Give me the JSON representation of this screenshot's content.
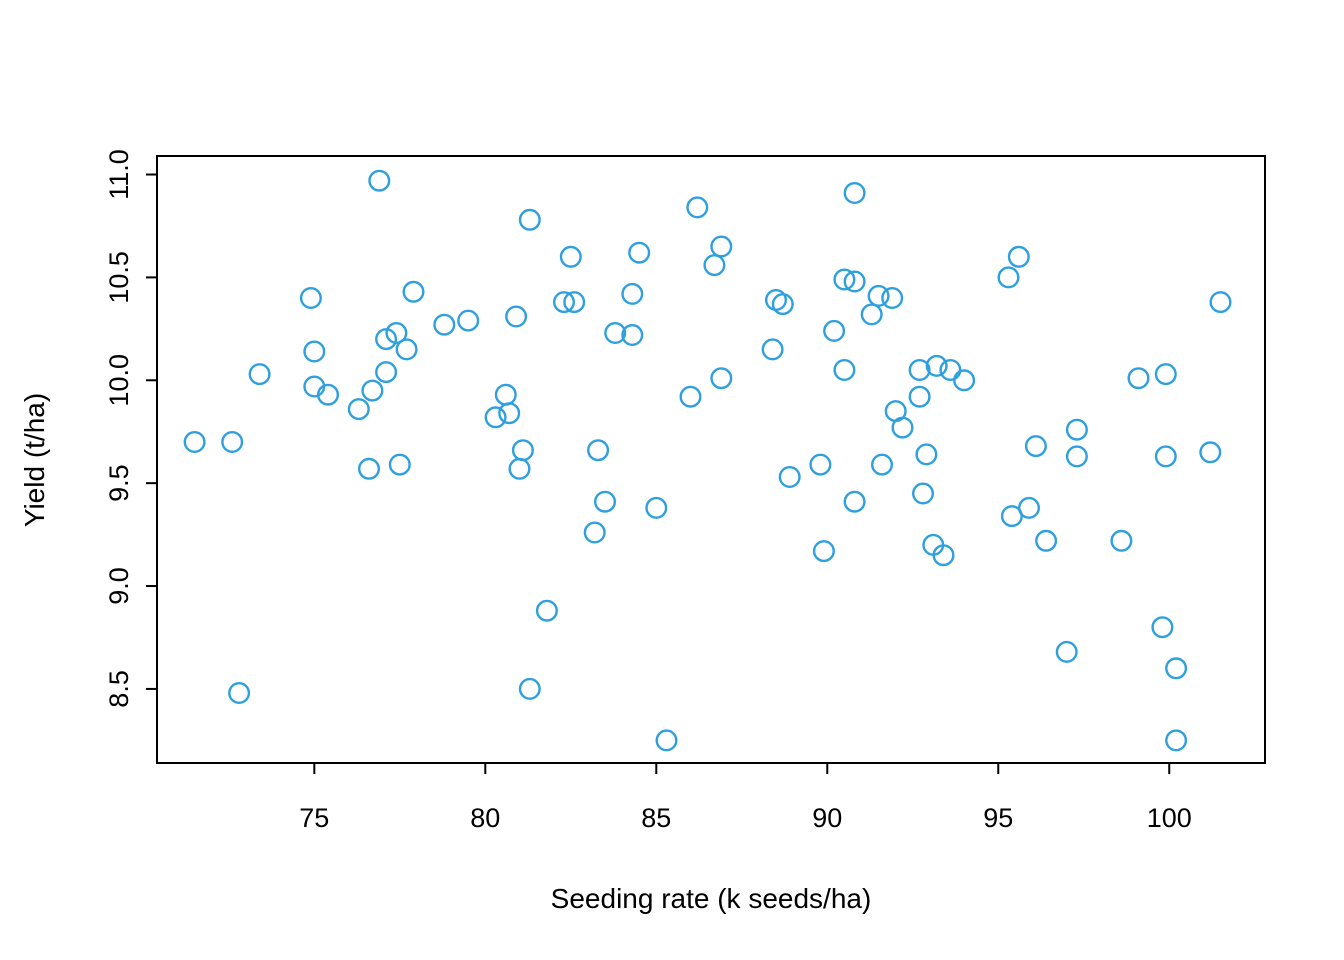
{
  "figure": {
    "background_color": "#ffffff",
    "border_color": "#000000",
    "text_color": "#000000"
  },
  "chart_data": {
    "type": "scatter",
    "title": "",
    "xlabel": "Seeding rate (k seeds/ha)",
    "ylabel": "Yield (t/ha)",
    "xlim": [
      70.4,
      102.8
    ],
    "ylim": [
      8.14,
      11.09
    ],
    "grid": "off",
    "legend": "none",
    "point_color": "#2E9FDF",
    "point_fill": "none",
    "x_ticks": [
      {
        "value": 75,
        "label": "75"
      },
      {
        "value": 80,
        "label": "80"
      },
      {
        "value": 85,
        "label": "85"
      },
      {
        "value": 90,
        "label": "90"
      },
      {
        "value": 95,
        "label": "95"
      },
      {
        "value": 100,
        "label": "100"
      }
    ],
    "y_ticks": [
      {
        "value": 8.5,
        "label": "8.5"
      },
      {
        "value": 9.0,
        "label": "9.0"
      },
      {
        "value": 9.5,
        "label": "9.5"
      },
      {
        "value": 10.0,
        "label": "10.0"
      },
      {
        "value": 10.5,
        "label": "10.5"
      },
      {
        "value": 11.0,
        "label": "11.0"
      }
    ],
    "points": [
      [
        76.9,
        10.97
      ],
      [
        81.3,
        10.78
      ],
      [
        74.9,
        10.4
      ],
      [
        77.9,
        10.43
      ],
      [
        78.8,
        10.27
      ],
      [
        79.5,
        10.29
      ],
      [
        80.9,
        10.31
      ],
      [
        77.1,
        10.2
      ],
      [
        77.4,
        10.23
      ],
      [
        77.7,
        10.15
      ],
      [
        75.0,
        10.14
      ],
      [
        73.4,
        10.03
      ],
      [
        77.1,
        10.04
      ],
      [
        75.0,
        9.97
      ],
      [
        75.4,
        9.93
      ],
      [
        76.7,
        9.95
      ],
      [
        76.3,
        9.86
      ],
      [
        80.6,
        9.93
      ],
      [
        80.3,
        9.82
      ],
      [
        80.7,
        9.84
      ],
      [
        71.5,
        9.7
      ],
      [
        72.6,
        9.7
      ],
      [
        86.2,
        10.84
      ],
      [
        90.8,
        10.91
      ],
      [
        86.9,
        10.65
      ],
      [
        86.7,
        10.56
      ],
      [
        82.5,
        10.6
      ],
      [
        84.5,
        10.62
      ],
      [
        84.3,
        10.42
      ],
      [
        82.3,
        10.38
      ],
      [
        82.6,
        10.38
      ],
      [
        88.5,
        10.39
      ],
      [
        88.7,
        10.37
      ],
      [
        90.5,
        10.49
      ],
      [
        90.8,
        10.48
      ],
      [
        91.5,
        10.41
      ],
      [
        91.9,
        10.4
      ],
      [
        91.3,
        10.32
      ],
      [
        83.8,
        10.23
      ],
      [
        84.3,
        10.22
      ],
      [
        90.2,
        10.24
      ],
      [
        88.4,
        10.15
      ],
      [
        90.5,
        10.05
      ],
      [
        86.9,
        10.01
      ],
      [
        86.0,
        9.92
      ],
      [
        83.3,
        9.66
      ],
      [
        89.8,
        9.59
      ],
      [
        91.6,
        9.59
      ],
      [
        92.0,
        9.85
      ],
      [
        92.2,
        9.77
      ],
      [
        95.6,
        10.6
      ],
      [
        95.3,
        10.5
      ],
      [
        101.5,
        10.38
      ],
      [
        92.7,
        10.05
      ],
      [
        93.2,
        10.07
      ],
      [
        93.6,
        10.05
      ],
      [
        94.0,
        10.0
      ],
      [
        92.7,
        9.92
      ],
      [
        99.1,
        10.01
      ],
      [
        99.9,
        10.03
      ],
      [
        97.3,
        9.76
      ],
      [
        96.1,
        9.68
      ],
      [
        92.9,
        9.64
      ],
      [
        97.3,
        9.63
      ],
      [
        99.9,
        9.63
      ],
      [
        101.2,
        9.65
      ],
      [
        76.6,
        9.57
      ],
      [
        77.5,
        9.59
      ],
      [
        81.1,
        9.66
      ],
      [
        81.0,
        9.57
      ],
      [
        72.8,
        8.48
      ],
      [
        83.5,
        9.41
      ],
      [
        85.0,
        9.38
      ],
      [
        83.2,
        9.26
      ],
      [
        88.9,
        9.53
      ],
      [
        90.8,
        9.41
      ],
      [
        89.9,
        9.17
      ],
      [
        81.8,
        8.88
      ],
      [
        81.3,
        8.5
      ],
      [
        85.3,
        8.25
      ],
      [
        92.8,
        9.45
      ],
      [
        95.4,
        9.34
      ],
      [
        95.9,
        9.38
      ],
      [
        96.4,
        9.22
      ],
      [
        98.6,
        9.22
      ],
      [
        93.1,
        9.2
      ],
      [
        93.4,
        9.15
      ],
      [
        99.8,
        8.8
      ],
      [
        97.0,
        8.68
      ],
      [
        100.2,
        8.6
      ],
      [
        100.2,
        8.25
      ]
    ]
  }
}
